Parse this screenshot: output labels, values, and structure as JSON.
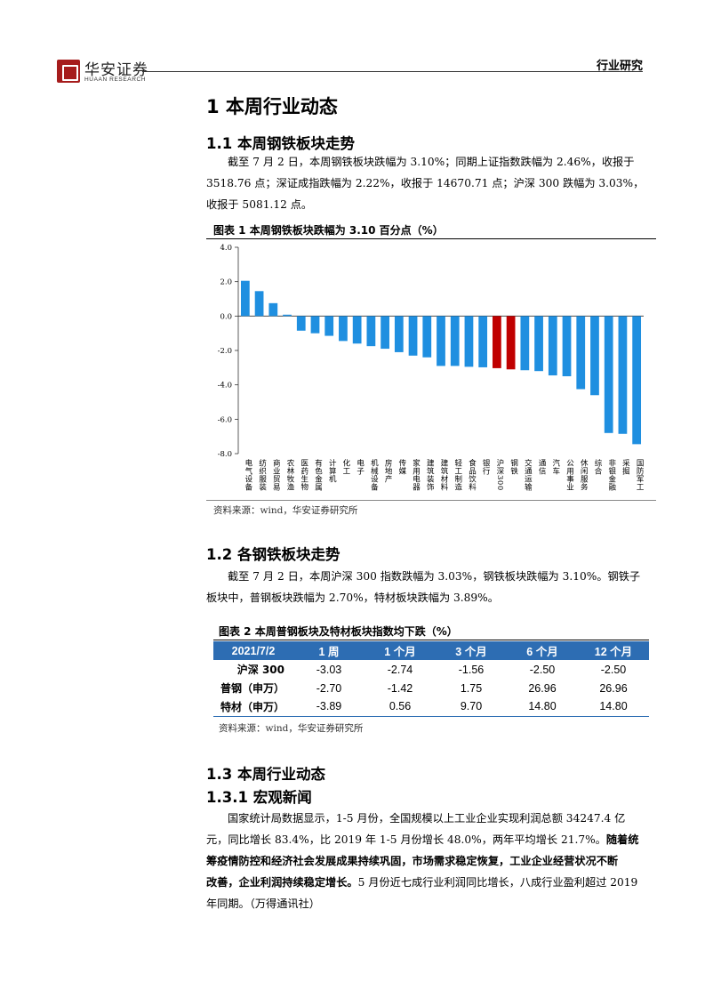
{
  "header": {
    "logo_cn": "华安证券",
    "logo_en": "HUAAN RESEARCH",
    "section": "行业研究"
  },
  "s1": {
    "title": "1  本周行业动态"
  },
  "s1_1": {
    "title": "1.1  本周钢铁板块走势",
    "para_l1": "截至 7 月 2 日，本周钢铁板块跌幅为 3.10%；同期上证指数跌幅为 2.46%，收报于",
    "para_l2": "3518.76 点；深证成指跌幅为 2.22%，收报于 14670.71 点；沪深 300 跌幅为 3.03%，",
    "para_l3": "收报于 5081.12 点。"
  },
  "fig1": {
    "title": "图表 1  本周钢铁板块跌幅为 3.10 百分点（%）",
    "source": "资料来源：wind，华安证券研究所"
  },
  "chart_data": {
    "type": "bar",
    "title": "图表 1  本周钢铁板块跌幅为 3.10 百分点（%）",
    "categories": [
      "电气设备",
      "纺织服装",
      "商业贸易",
      "农林牧渔",
      "医药生物",
      "有色金属",
      "计算机",
      "化工",
      "电子",
      "机械设备",
      "房地产",
      "传媒",
      "家用电器",
      "建筑装饰",
      "建筑材料",
      "轻工制造",
      "食品饮料",
      "银行",
      "沪深300",
      "钢铁",
      "交通运输",
      "通信",
      "汽车",
      "公用事业",
      "休闲服务",
      "综合",
      "非银金融",
      "采掘",
      "国防军工"
    ],
    "values": [
      2.05,
      1.45,
      0.75,
      0.08,
      -0.85,
      -1.0,
      -1.15,
      -1.45,
      -1.6,
      -1.75,
      -1.9,
      -2.1,
      -2.3,
      -2.4,
      -2.9,
      -2.9,
      -2.95,
      -2.98,
      -3.03,
      -3.1,
      -3.15,
      -3.2,
      -3.45,
      -3.5,
      -4.25,
      -4.6,
      -6.8,
      -6.85,
      -7.45
    ],
    "highlight": [
      "沪深300",
      "钢铁"
    ],
    "bar_color": "#1f8fe0",
    "highlight_color": "#c00000",
    "ylim": [
      -8.0,
      4.0
    ],
    "yticks": [
      "4.0",
      "2.0",
      "0.0",
      "-2.0",
      "-4.0",
      "-6.0",
      "-8.0"
    ],
    "ytick_values": [
      4,
      2,
      0,
      -2,
      -4,
      -6,
      -8
    ],
    "grid": false,
    "xlabel": "",
    "ylabel": ""
  },
  "s1_2": {
    "title": "1.2  各钢铁板块走势",
    "para_l1": "截至 7 月 2 日，本周沪深 300 指数跌幅为 3.03%，钢铁板块跌幅为 3.10%。钢铁子",
    "para_l2": "板块中，普钢板块跌幅为 2.70%，特材板块跌幅为 3.89%。"
  },
  "fig2": {
    "title": "图表 2  本周普钢板块及特材板块指数均下跌（%）",
    "source": "资料来源：wind，华安证券研究所",
    "headers": [
      "2021/7/2",
      "1 周",
      "1 个月",
      "3 个月",
      "6 个月",
      "12 个月"
    ],
    "rows": [
      [
        "沪深 300",
        "-3.03",
        "-2.74",
        "-1.56",
        "-2.50",
        "-2.50"
      ],
      [
        "普钢（申万）",
        "-2.70",
        "-1.42",
        "1.75",
        "26.96",
        "26.96"
      ],
      [
        "特材（申万）",
        "-3.89",
        "0.56",
        "9.70",
        "14.80",
        "14.80"
      ]
    ]
  },
  "s1_3": {
    "title": "1.3  本周行业动态"
  },
  "s1_3_1": {
    "title": "1.3.1  宏观新闻",
    "para_l1": "国家统计局数据显示，1-5 月份，全国规模以上工业企业实现利润总额 34247.4 亿",
    "para_l2a": "元，同比增长 83.4%，比 2019 年 1-5 月份增长 48.0%，两年平均增长 21.7%。",
    "para_l2b": "随着统",
    "para_l3": "筹疫情防控和经济社会发展成果持续巩固，市场需求稳定恢复，工业企业经营状况不断",
    "para_l4a": "改善，企业利润持续稳定增长。",
    "para_l4b": "5 月份近七成行业利润同比增长，八成行业盈利超过 2019",
    "para_l5": "年同期。（万得通讯社）"
  }
}
